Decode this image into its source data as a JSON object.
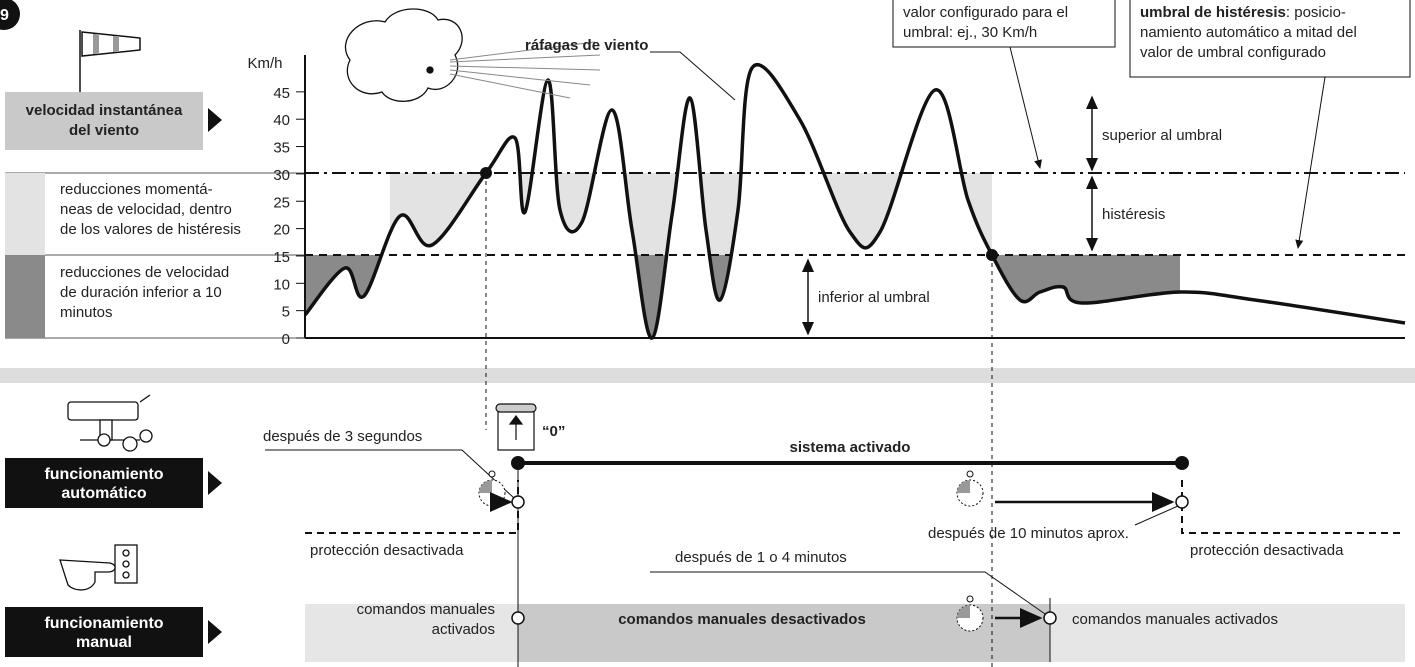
{
  "figure_number": "9",
  "wind": {
    "label": [
      "velocidad instantánea",
      "del viento"
    ],
    "unit": "Km/h",
    "ticks": [
      0,
      5,
      10,
      15,
      20,
      25,
      30,
      35,
      40,
      45
    ],
    "gusts": "ráfagas de viento",
    "callout_threshold": [
      "valor configurado para el",
      "umbral: ej., 30 Km/h"
    ],
    "callout_hysteresis": {
      "bold": "umbral de histéresis",
      "lines": [
        ": posicio-",
        "namiento automático a mitad del",
        "valor de umbral configurado"
      ]
    },
    "above": "superior al umbral",
    "hysteresis": "histéresis",
    "below": "inferior al umbral",
    "legend_light": [
      "reducciones momentá-",
      "neas de velocidad, dentro",
      "de los valores de histéresis"
    ],
    "legend_dark": [
      "reducciones de velocidad",
      "de duración inferior a 10",
      "minutos"
    ]
  },
  "automatic": {
    "label": [
      "funcionamiento",
      "automático"
    ],
    "after_3s": "después de 3 segundos",
    "zero": "“0”",
    "active": "sistema activado",
    "after_10min": "después de 10 minutos aprox.",
    "protection_off_left": "protección desactivada",
    "protection_off_right": "protección desactivada"
  },
  "manual": {
    "label": [
      "funcionamiento",
      "manual"
    ],
    "after_1_4min": "después de 1 o 4 minutos",
    "enabled_left": [
      "comandos manuales",
      "activados"
    ],
    "disabled": "comandos manuales desactivados",
    "enabled_right": "comandos manuales activados"
  }
}
